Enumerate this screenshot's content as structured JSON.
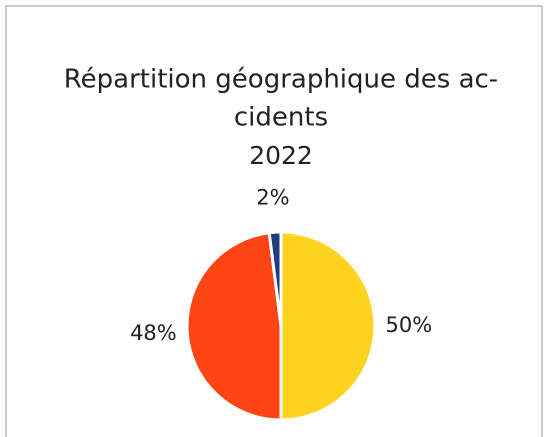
{
  "chart_data": {
    "type": "pie",
    "title": [
      "Répartition géographique des ac-",
      "cidents"
    ],
    "subtitle": "2022",
    "values": [
      50,
      48,
      2
    ],
    "value_labels": [
      "50%",
      "48%",
      "2%"
    ],
    "colors": [
      "#FFD320",
      "#FF4515",
      "#1F3C7E"
    ]
  }
}
